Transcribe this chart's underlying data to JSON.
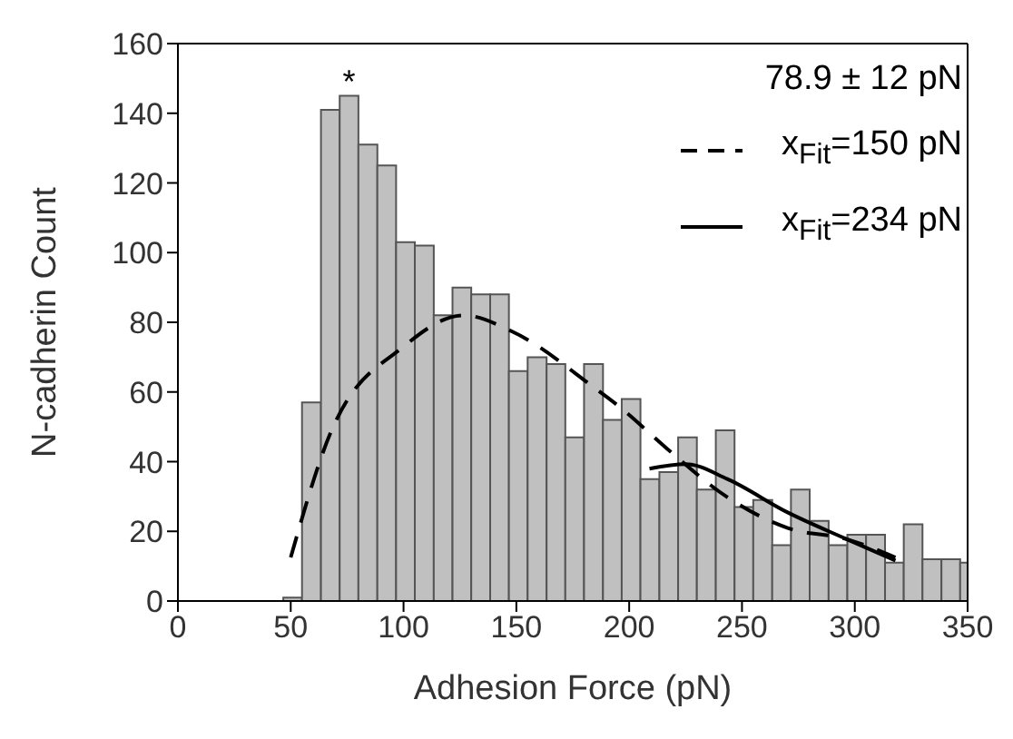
{
  "chart_data": {
    "type": "histogram",
    "xlabel": "Adhesion Force (pN)",
    "ylabel": "N-cadherin Count",
    "bins": [
      46.7,
      55.0,
      63.4,
      71.7,
      80.0,
      88.4,
      96.7,
      105.0,
      113.4,
      121.7,
      130.0,
      138.4,
      146.7,
      155.0,
      163.4,
      171.7,
      180.0,
      188.4,
      196.7,
      205.0,
      213.4,
      221.7,
      230.0,
      238.4,
      246.7,
      255.0,
      263.4,
      271.7,
      280.0,
      288.4,
      296.7,
      305.0,
      313.4,
      321.7,
      330.0,
      338.4,
      346.7,
      350
    ],
    "values": [
      1,
      57,
      141,
      145,
      131,
      125,
      103,
      102,
      82,
      90,
      88,
      88,
      66,
      70,
      68,
      47,
      68,
      52,
      58,
      35,
      37,
      47,
      32,
      49,
      27,
      29,
      16,
      32,
      23,
      16,
      19,
      19,
      11,
      22,
      12,
      12,
      11
    ],
    "color": "#c0c0c0",
    "series": [
      {
        "type": "line",
        "name": "x$_{Fit}$=150 pN",
        "color": "#000000",
        "line_style": "dashed",
        "x": [
          50,
          68,
          100,
          126.5,
          148,
          185,
          195.6,
          217,
          243.5,
          270,
          296.6,
          318
        ],
        "values": [
          12.5,
          48.8,
          73,
          82,
          77.4,
          61,
          55.8,
          43.6,
          29.8,
          21,
          17.7,
          12.5
        ]
      },
      {
        "type": "line",
        "name": "x$_{Fit}$=234 pN",
        "color": "#000000",
        "line_style": "solid",
        "x": [
          209,
          225,
          243.5,
          270,
          296.6,
          318
        ],
        "values": [
          38,
          39.3,
          35,
          25.5,
          17.7,
          11.6
        ]
      }
    ],
    "annotations": [
      "78.9 ± 12 pN",
      {
        "text": "*",
        "x": 75.8,
        "y": 145
      }
    ],
    "xlim": [
      0,
      350
    ],
    "xticks": [
      0,
      50,
      100,
      150,
      200,
      250,
      300,
      350
    ],
    "ylim": [
      0,
      160
    ],
    "yticks": [
      0,
      20,
      40,
      60,
      80,
      100,
      120,
      140,
      160
    ],
    "legend": "top right",
    "marker": "none"
  }
}
